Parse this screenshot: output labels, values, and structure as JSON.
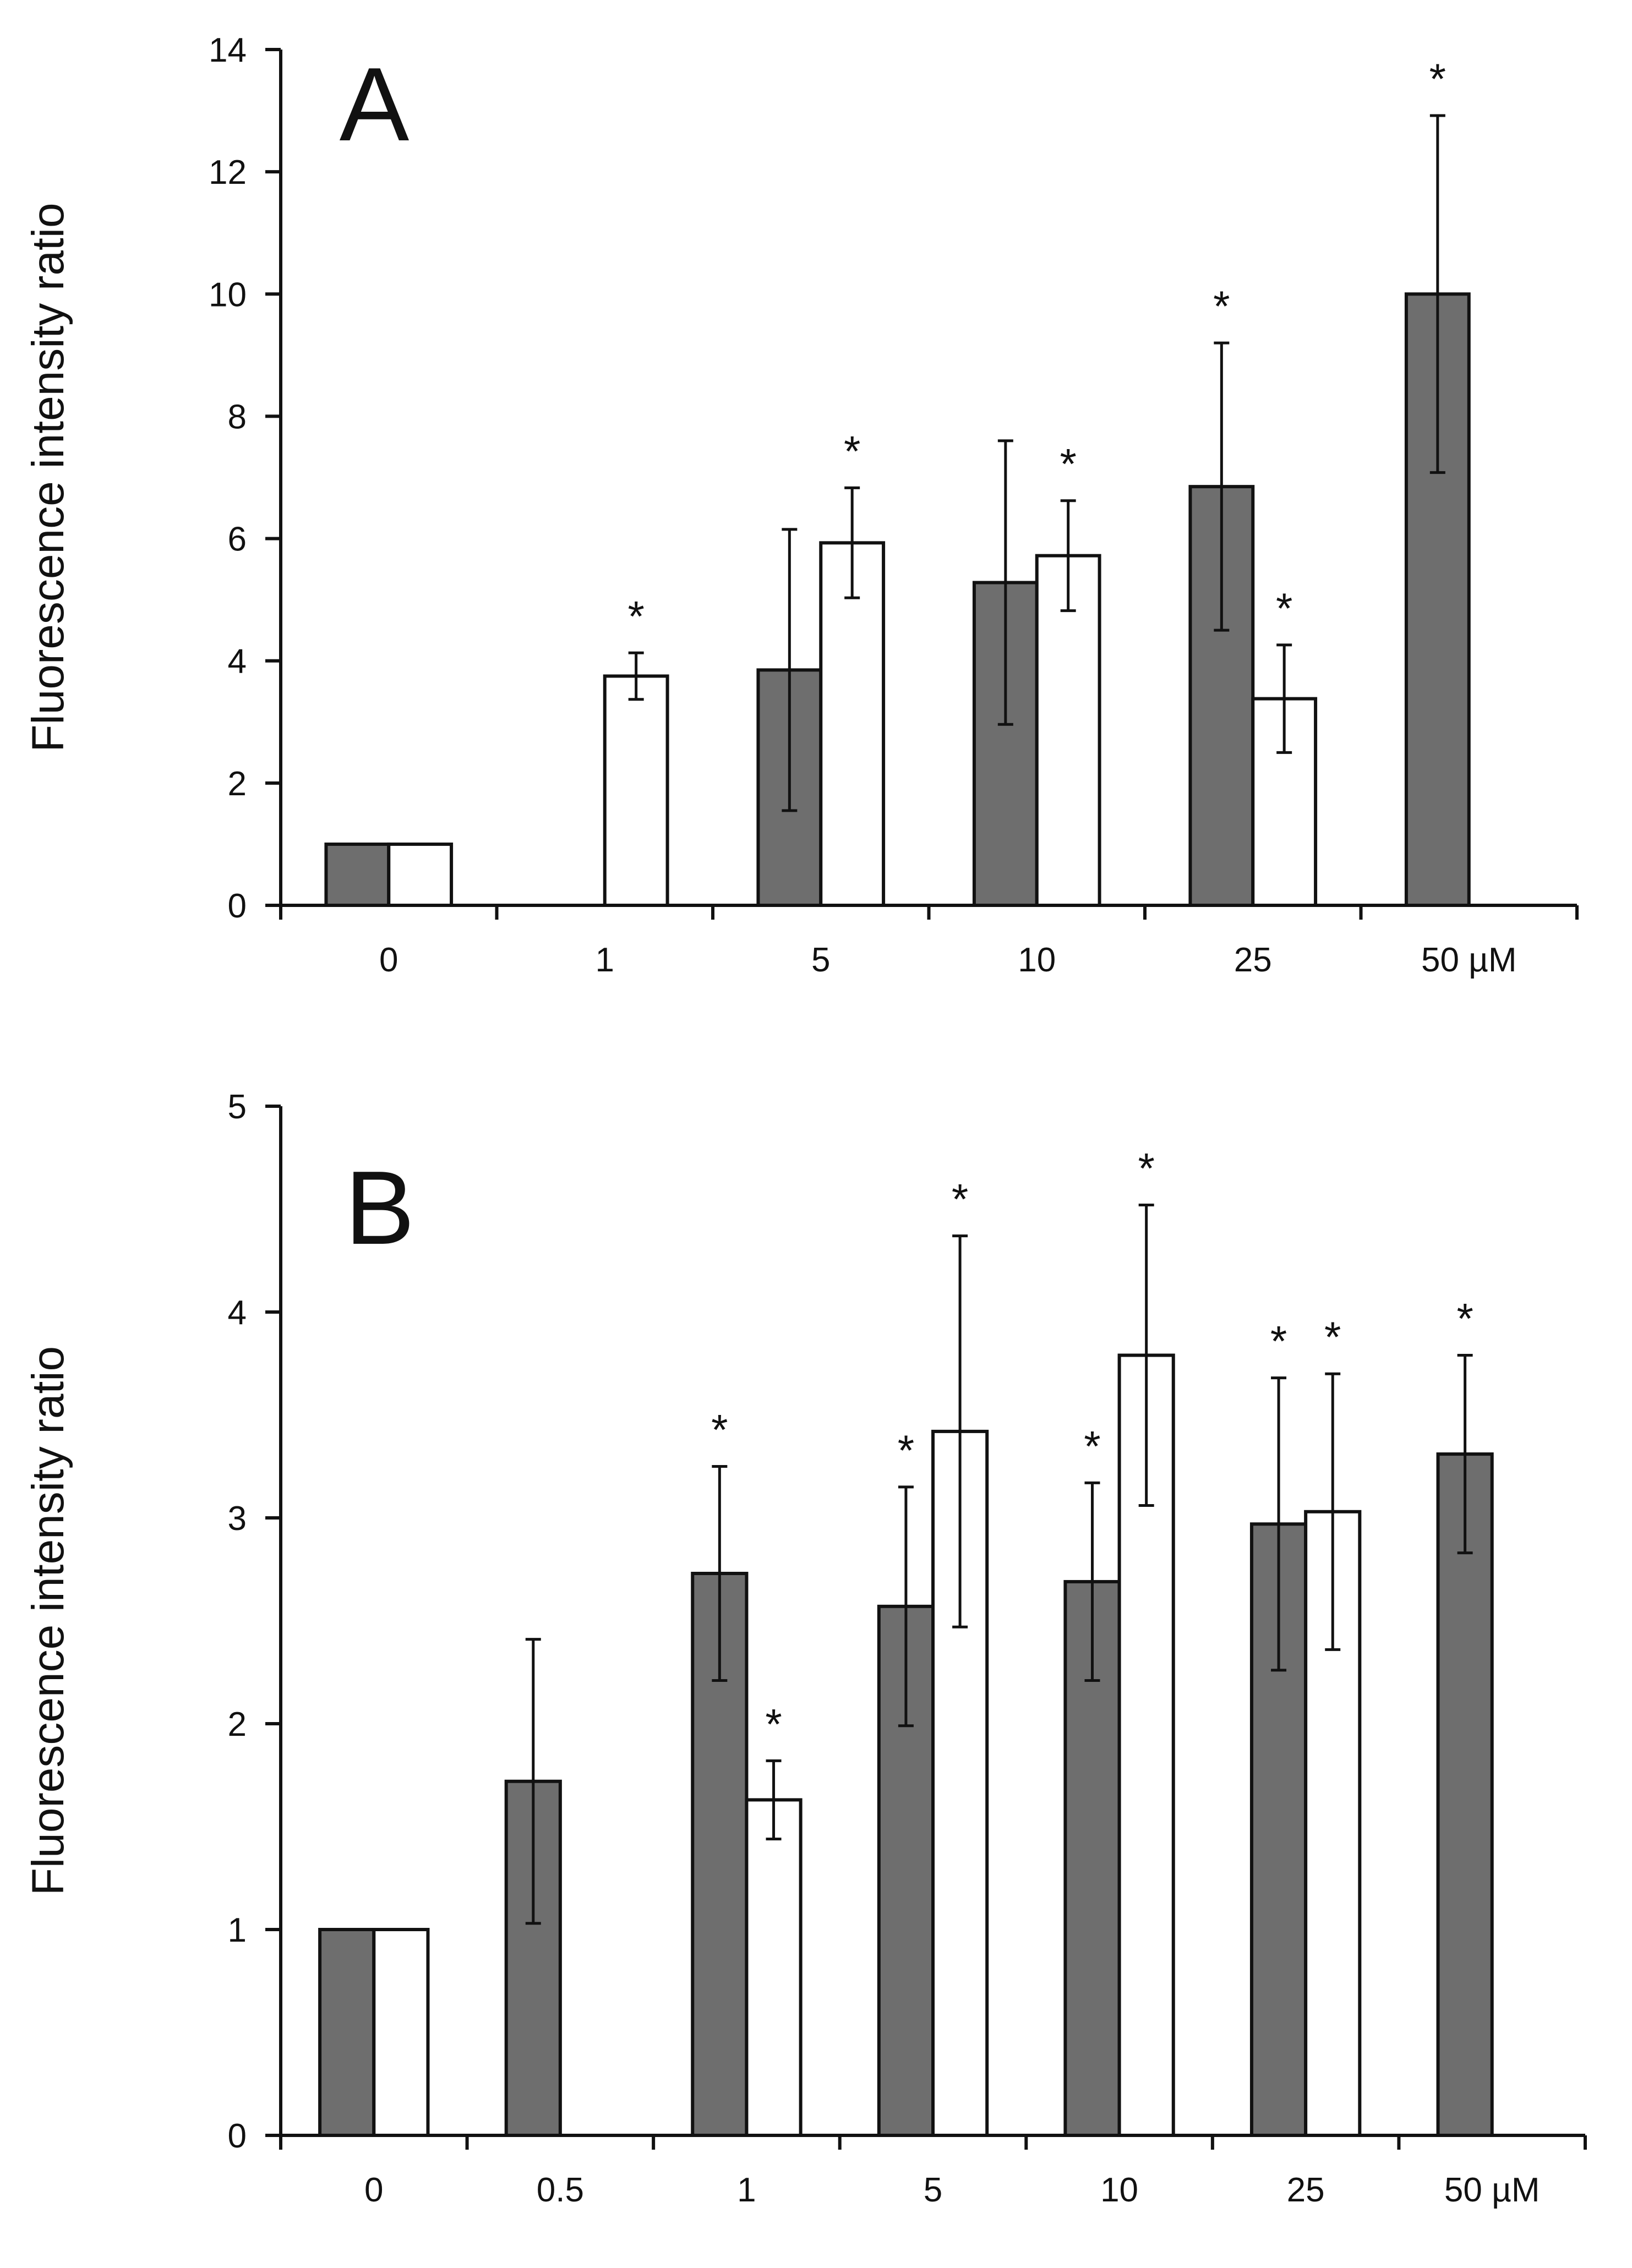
{
  "colors": {
    "gray_bar": "#6e6e6e",
    "white_bar": "#ffffff",
    "stroke": "#111111"
  },
  "chart_data": [
    {
      "type": "bar",
      "panel_label": "A",
      "ylabel": "Fluorescence intensity ratio",
      "xlabel": "",
      "ylim": [
        0,
        14
      ],
      "yticks": [
        "0",
        "2",
        "4",
        "6",
        "8",
        "10",
        "12",
        "14"
      ],
      "categories": [
        "0",
        "1",
        "5",
        "10",
        "25",
        "50 µM"
      ],
      "series": [
        {
          "name": "gray",
          "values": [
            1.0,
            null,
            3.85,
            5.28,
            6.85,
            10.0
          ],
          "errors": [
            0,
            null,
            2.3,
            2.32,
            2.35,
            2.92
          ],
          "significant": [
            false,
            false,
            false,
            false,
            true,
            true
          ]
        },
        {
          "name": "white",
          "values": [
            1.0,
            3.75,
            5.93,
            5.72,
            3.38,
            null
          ],
          "errors": [
            0,
            0.38,
            0.9,
            0.9,
            0.88,
            null
          ],
          "significant": [
            false,
            true,
            true,
            true,
            true,
            false
          ]
        }
      ],
      "significance_mark": "*"
    },
    {
      "type": "bar",
      "panel_label": "B",
      "ylabel": "Fluorescence intensity ratio",
      "xlabel": "",
      "ylim": [
        0,
        5
      ],
      "yticks": [
        "0",
        "1",
        "2",
        "3",
        "4",
        "5"
      ],
      "categories": [
        "0",
        "0.5",
        "1",
        "5",
        "10",
        "25",
        "50 µM"
      ],
      "series": [
        {
          "name": "gray",
          "values": [
            1.0,
            1.72,
            2.73,
            2.57,
            2.69,
            2.97,
            3.31
          ],
          "errors": [
            0,
            0.69,
            0.52,
            0.58,
            0.48,
            0.71,
            0.48
          ],
          "significant": [
            false,
            false,
            true,
            true,
            true,
            true,
            true
          ]
        },
        {
          "name": "white",
          "values": [
            1.0,
            null,
            1.63,
            3.42,
            3.79,
            3.03,
            null
          ],
          "errors": [
            0,
            null,
            0.19,
            0.95,
            0.73,
            0.67,
            null
          ],
          "significant": [
            false,
            false,
            true,
            true,
            true,
            true,
            false
          ]
        }
      ],
      "significance_mark": "*"
    }
  ]
}
